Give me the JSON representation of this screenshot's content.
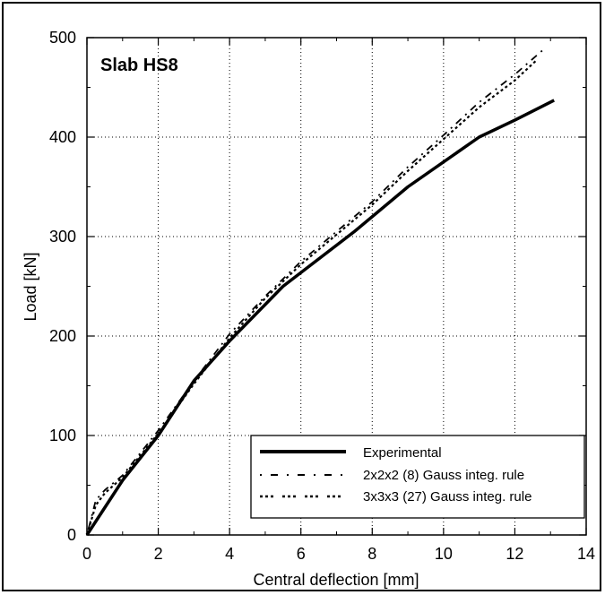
{
  "chart_data": {
    "type": "line",
    "title": "",
    "annotation": "Slab HS8",
    "xlabel": "Central deflection [mm]",
    "ylabel": "Load [kN]",
    "xlim": [
      0,
      14
    ],
    "ylim": [
      0,
      500
    ],
    "xticks": [
      0,
      2,
      4,
      6,
      8,
      10,
      12,
      14
    ],
    "yticks": [
      0,
      100,
      200,
      300,
      400,
      500
    ],
    "grid": "dotted",
    "legend_position": "bottom-right",
    "series": [
      {
        "name": "Experimental",
        "style": "solid-thick",
        "x": [
          0,
          1,
          2,
          3,
          4,
          5.5,
          7.5,
          9,
          11,
          12,
          13.1
        ],
        "y": [
          0,
          55,
          100,
          155,
          195,
          250,
          305,
          350,
          400,
          417,
          437
        ]
      },
      {
        "name": "2x2x2 (8) Gauss integ. rule",
        "style": "dash-dot",
        "x": [
          0,
          0.25,
          0.5,
          1,
          2,
          3,
          4,
          5,
          6,
          7,
          8,
          9,
          10,
          11,
          12,
          12.8
        ],
        "y": [
          0,
          35,
          45,
          60,
          105,
          155,
          202,
          240,
          275,
          305,
          335,
          370,
          402,
          435,
          463,
          488
        ]
      },
      {
        "name": "3x3x3 (27) Gauss integ. rule",
        "style": "dotted-thick",
        "x": [
          0,
          0.25,
          0.5,
          1,
          2,
          3,
          4,
          5,
          6,
          7,
          8,
          9,
          10,
          11,
          12,
          12.6
        ],
        "y": [
          0,
          30,
          42,
          58,
          102,
          152,
          198,
          238,
          272,
          302,
          332,
          366,
          398,
          430,
          457,
          477
        ]
      }
    ]
  }
}
